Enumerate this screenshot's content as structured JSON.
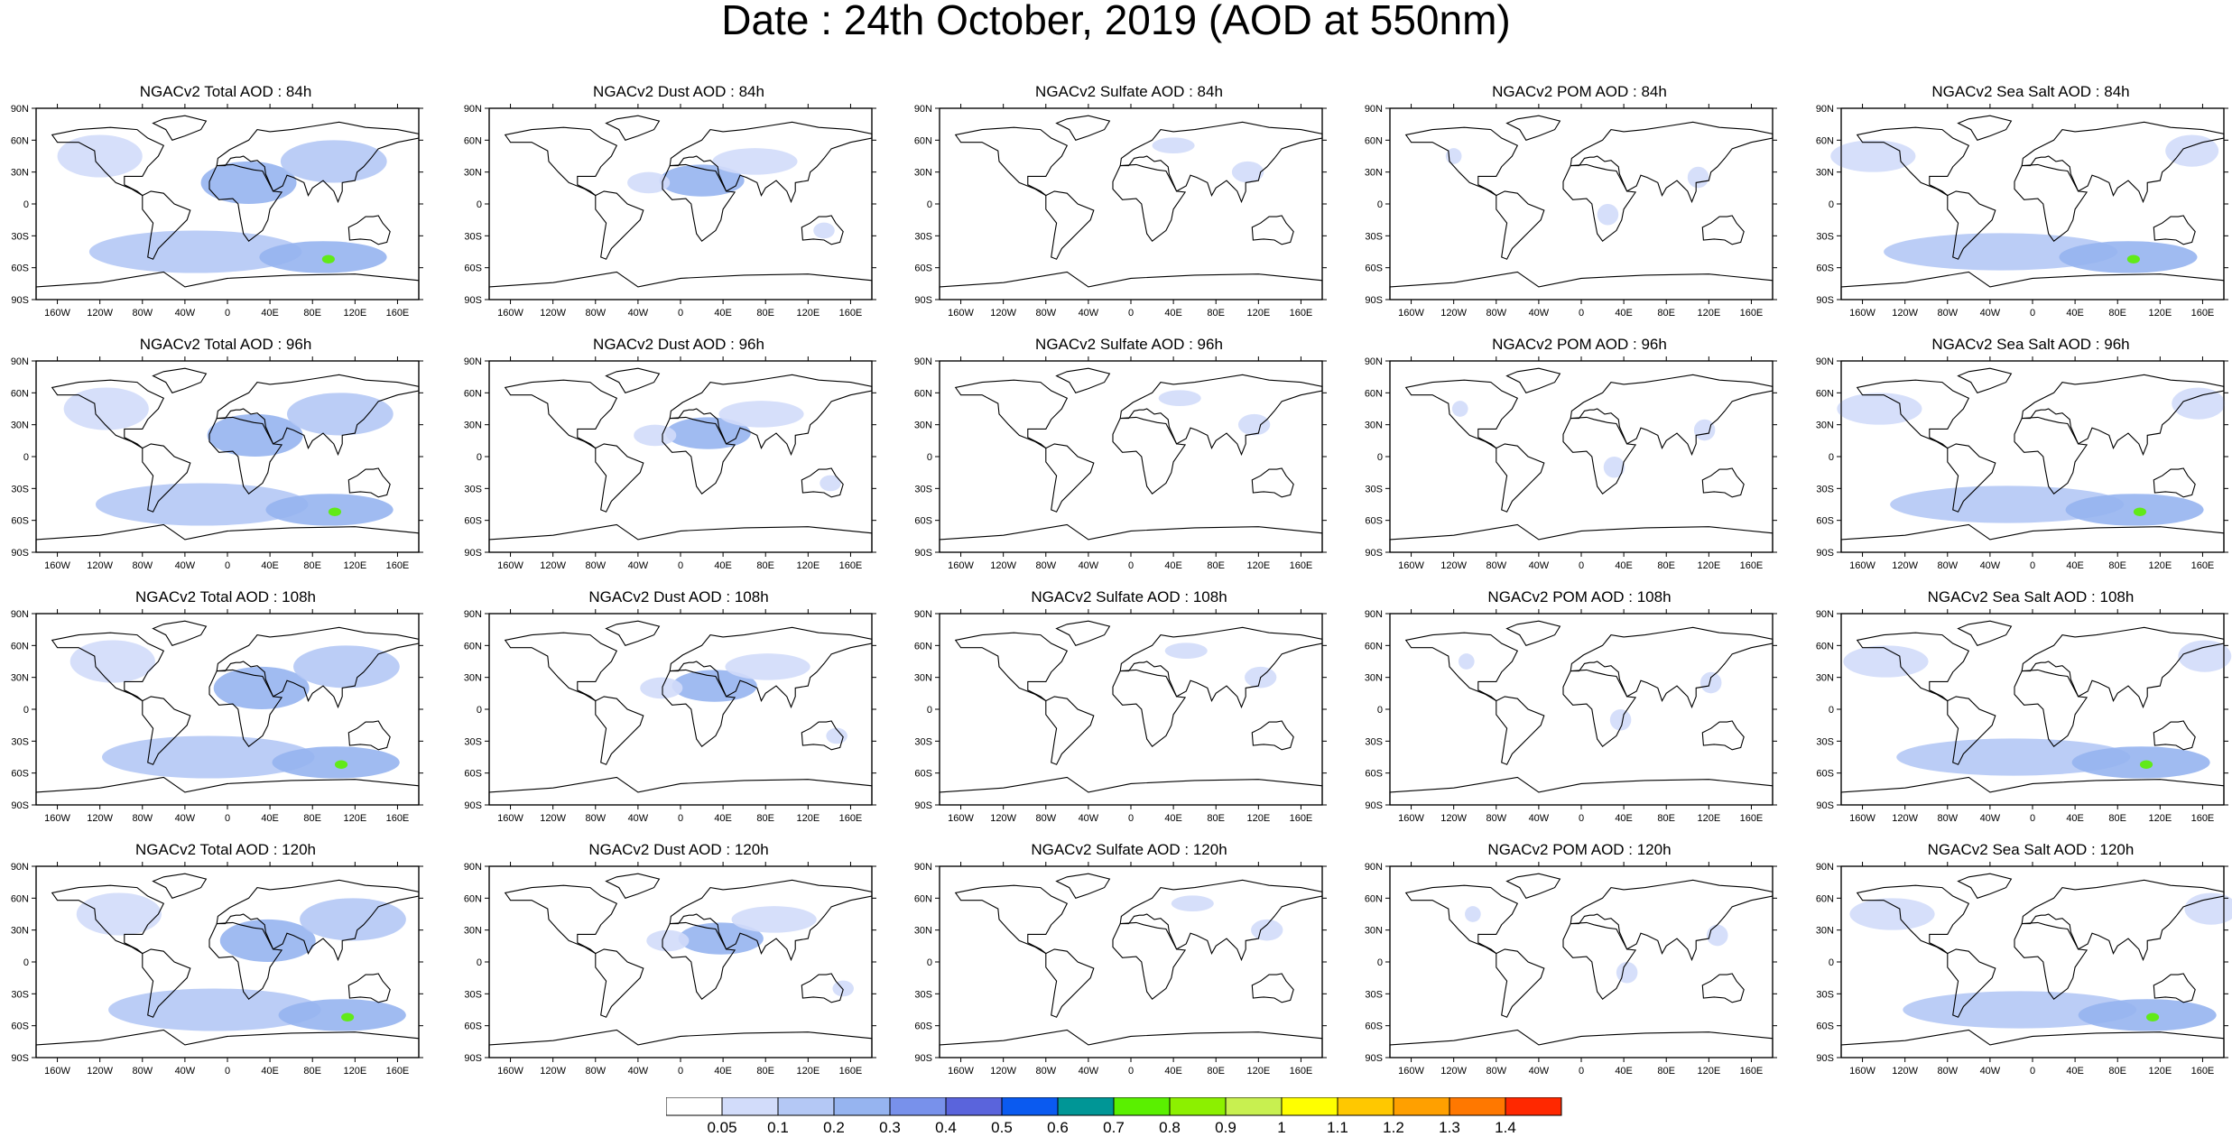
{
  "title": "Date : 24th October, 2019 (AOD at 550nm)",
  "lon_labels": [
    "160W",
    "120W",
    "80W",
    "40W",
    "0",
    "40E",
    "80E",
    "120E",
    "160E"
  ],
  "lat_labels": [
    "90N",
    "60N",
    "30N",
    "0",
    "30S",
    "60S",
    "90S"
  ],
  "panels": [
    {
      "title": "NGACv2 Total AOD : 84h",
      "species": "total"
    },
    {
      "title": "NGACv2 Dust AOD : 84h",
      "species": "dust"
    },
    {
      "title": "NGACv2 Sulfate AOD : 84h",
      "species": "sulfate"
    },
    {
      "title": "NGACv2 POM AOD : 84h",
      "species": "pom"
    },
    {
      "title": "NGACv2 Sea Salt AOD : 84h",
      "species": "seasalt"
    },
    {
      "title": "NGACv2 Total AOD : 96h",
      "species": "total"
    },
    {
      "title": "NGACv2 Dust AOD : 96h",
      "species": "dust"
    },
    {
      "title": "NGACv2 Sulfate AOD : 96h",
      "species": "sulfate"
    },
    {
      "title": "NGACv2 POM AOD : 96h",
      "species": "pom"
    },
    {
      "title": "NGACv2 Sea Salt AOD : 96h",
      "species": "seasalt"
    },
    {
      "title": "NGACv2 Total AOD : 108h",
      "species": "total"
    },
    {
      "title": "NGACv2 Dust AOD : 108h",
      "species": "dust"
    },
    {
      "title": "NGACv2 Sulfate AOD : 108h",
      "species": "sulfate"
    },
    {
      "title": "NGACv2 POM AOD : 108h",
      "species": "pom"
    },
    {
      "title": "NGACv2 Sea Salt AOD : 108h",
      "species": "seasalt"
    },
    {
      "title": "NGACv2 Total AOD : 120h",
      "species": "total"
    },
    {
      "title": "NGACv2 Dust AOD : 120h",
      "species": "dust"
    },
    {
      "title": "NGACv2 Sulfate AOD : 120h",
      "species": "sulfate"
    },
    {
      "title": "NGACv2 POM AOD : 120h",
      "species": "pom"
    },
    {
      "title": "NGACv2 Sea Salt  AOD : 120h",
      "species": "seasalt"
    }
  ],
  "colorbar": {
    "labels": [
      "0.05",
      "0.1",
      "0.2",
      "0.3",
      "0.4",
      "0.5",
      "0.6",
      "0.7",
      "0.8",
      "0.9",
      "1",
      "1.1",
      "1.2",
      "1.3",
      "1.4"
    ],
    "colors": [
      "#ffffff",
      "#d2dcfa",
      "#b4c8f5",
      "#96b4f0",
      "#7891eb",
      "#5a64dc",
      "#0a5af0",
      "#009696",
      "#5af000",
      "#8cf000",
      "#c8f050",
      "#ffff00",
      "#ffc800",
      "#ffa000",
      "#ff7800",
      "#ff2800"
    ]
  },
  "aod_shading": {
    "total": [
      {
        "lon": 20,
        "lat": 20,
        "w": 90,
        "h": 40,
        "level": 3
      },
      {
        "lon": -30,
        "lat": -45,
        "w": 200,
        "h": 40,
        "level": 2
      },
      {
        "lon": 90,
        "lat": -50,
        "w": 120,
        "h": 30,
        "level": 3
      },
      {
        "lon": 100,
        "lat": 40,
        "w": 100,
        "h": 40,
        "level": 2
      },
      {
        "lon": -120,
        "lat": 45,
        "w": 80,
        "h": 40,
        "level": 1
      },
      {
        "lon": 95,
        "lat": -52,
        "w": 12,
        "h": 8,
        "level": 8
      }
    ],
    "dust": [
      {
        "lon": 20,
        "lat": 22,
        "w": 80,
        "h": 30,
        "level": 3
      },
      {
        "lon": 70,
        "lat": 40,
        "w": 80,
        "h": 25,
        "level": 1
      },
      {
        "lon": -30,
        "lat": 20,
        "w": 40,
        "h": 20,
        "level": 1
      },
      {
        "lon": 135,
        "lat": -25,
        "w": 20,
        "h": 15,
        "level": 1
      }
    ],
    "sulfate": [
      {
        "lon": 110,
        "lat": 30,
        "w": 30,
        "h": 20,
        "level": 1
      },
      {
        "lon": 40,
        "lat": 55,
        "w": 40,
        "h": 15,
        "level": 1
      }
    ],
    "pom": [
      {
        "lon": 25,
        "lat": -10,
        "w": 20,
        "h": 20,
        "level": 1
      },
      {
        "lon": -120,
        "lat": 45,
        "w": 15,
        "h": 15,
        "level": 1
      },
      {
        "lon": 110,
        "lat": 25,
        "w": 20,
        "h": 20,
        "level": 1
      }
    ],
    "seasalt": [
      {
        "lon": -30,
        "lat": -45,
        "w": 220,
        "h": 35,
        "level": 2
      },
      {
        "lon": 90,
        "lat": -50,
        "w": 130,
        "h": 30,
        "level": 3
      },
      {
        "lon": -150,
        "lat": 45,
        "w": 80,
        "h": 30,
        "level": 1
      },
      {
        "lon": 150,
        "lat": 50,
        "w": 50,
        "h": 30,
        "level": 1
      },
      {
        "lon": 95,
        "lat": -52,
        "w": 12,
        "h": 8,
        "level": 8
      }
    ]
  }
}
